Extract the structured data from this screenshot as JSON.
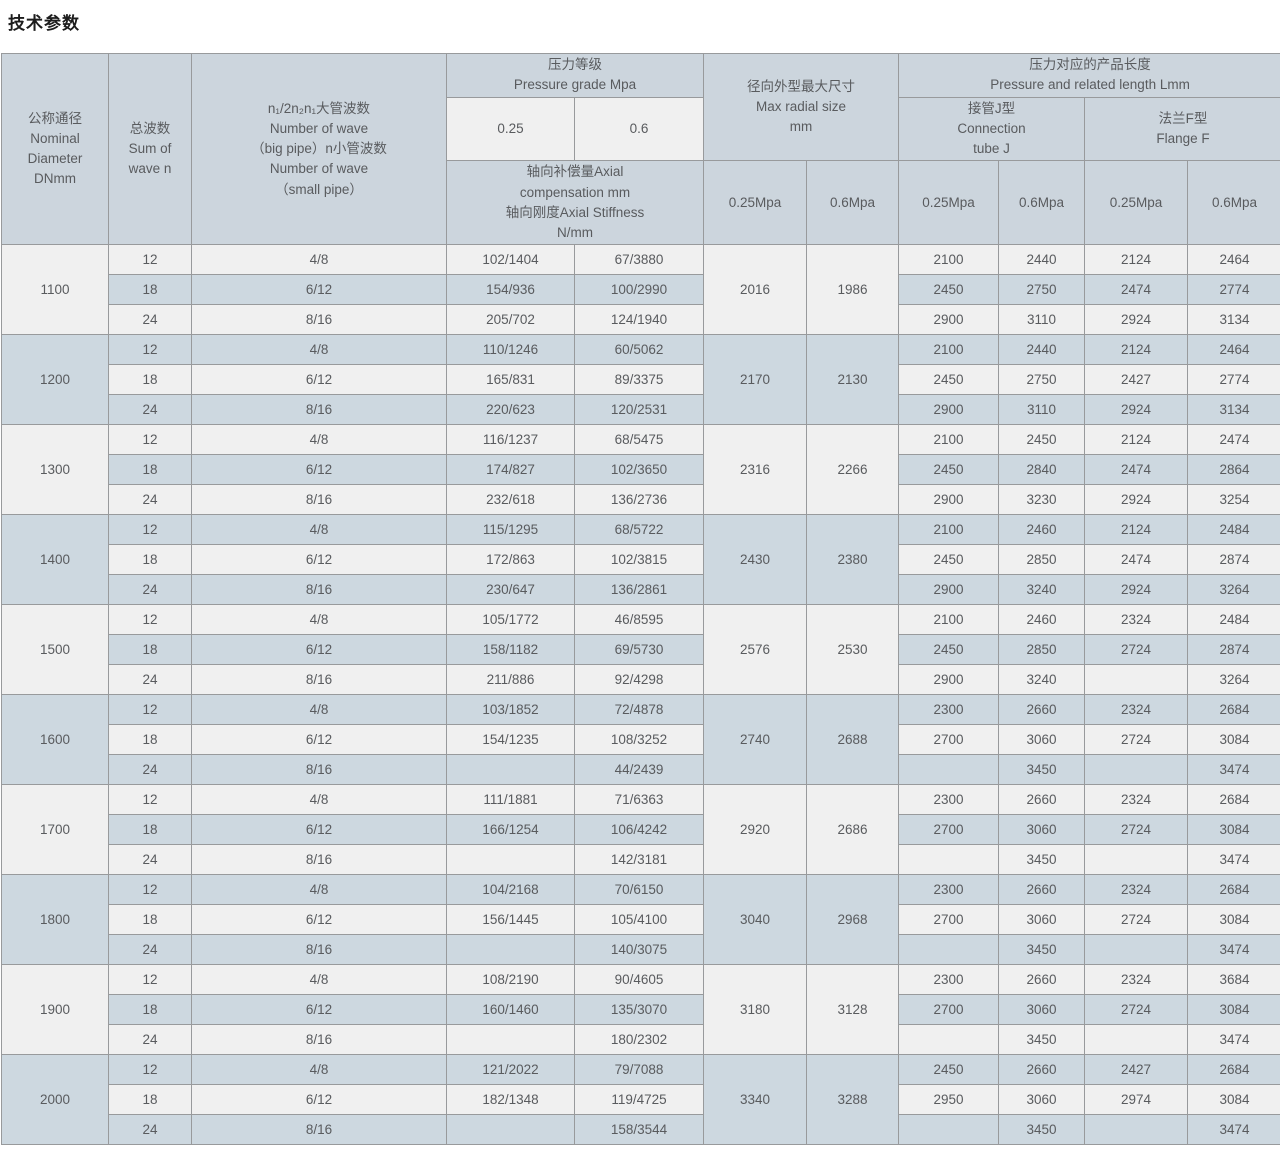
{
  "page_title": "技术参数",
  "colors": {
    "header_bg": "#ccd5dd",
    "row_light_bg": "#f0f0f0",
    "row_blue_bg": "#cdd8e0",
    "border": "#989a9c",
    "text": "#595b5e",
    "title_text": "#1c1c1c"
  },
  "table": {
    "header": {
      "nominal_diameter": "公称通径\nNominal\nDiameter\nDNmm",
      "sum_of_wave": "总波数\nSum of\nwave n",
      "wave_numbers": "n₁/2n₂n₁大管波数\nNumber of wave\n（big pipe）n小管波数\nNumber of wave\n（small pipe）",
      "pressure_grade": "压力等级\nPressure grade Mpa",
      "pressure_025": "0.25",
      "pressure_06": "0.6",
      "axial": "轴向补偿量Axial\ncompensation mm\n轴向刚度Axial Stiffness\nN/mm",
      "max_radial": "径向外型最大尺寸\nMax radial size\nmm",
      "radial_025": "0.25Mpa",
      "radial_06": "0.6Mpa",
      "length": "压力对应的产品长度\nPressure and related length Lmm",
      "connection_tube": "接管J型\nConnection\ntube J",
      "flange": "法兰F型\nFlange F",
      "j_025": "0.25Mpa",
      "j_06": "0.6Mpa",
      "f_025": "0.25Mpa",
      "f_06": "0.6Mpa"
    },
    "blocks": [
      {
        "dn": "1100",
        "radial_025": "2016",
        "radial_06": "1986",
        "rows": [
          {
            "waves": "12",
            "ratio": "4/8",
            "axial_025": "102/1404",
            "axial_06": "67/3880",
            "j_025": "2100",
            "j_06": "2440",
            "f_025": "2124",
            "f_06": "2464"
          },
          {
            "waves": "18",
            "ratio": "6/12",
            "axial_025": "154/936",
            "axial_06": "100/2990",
            "j_025": "2450",
            "j_06": "2750",
            "f_025": "2474",
            "f_06": "2774"
          },
          {
            "waves": "24",
            "ratio": "8/16",
            "axial_025": "205/702",
            "axial_06": "124/1940",
            "j_025": "2900",
            "j_06": "3110",
            "f_025": "2924",
            "f_06": "3134"
          }
        ]
      },
      {
        "dn": "1200",
        "radial_025": "2170",
        "radial_06": "2130",
        "rows": [
          {
            "waves": "12",
            "ratio": "4/8",
            "axial_025": "110/1246",
            "axial_06": "60/5062",
            "j_025": "2100",
            "j_06": "2440",
            "f_025": "2124",
            "f_06": "2464"
          },
          {
            "waves": "18",
            "ratio": "6/12",
            "axial_025": "165/831",
            "axial_06": "89/3375",
            "j_025": "2450",
            "j_06": "2750",
            "f_025": "2427",
            "f_06": "2774"
          },
          {
            "waves": "24",
            "ratio": "8/16",
            "axial_025": "220/623",
            "axial_06": "120/2531",
            "j_025": "2900",
            "j_06": "3110",
            "f_025": "2924",
            "f_06": "3134"
          }
        ]
      },
      {
        "dn": "1300",
        "radial_025": "2316",
        "radial_06": "2266",
        "rows": [
          {
            "waves": "12",
            "ratio": "4/8",
            "axial_025": "116/1237",
            "axial_06": "68/5475",
            "j_025": "2100",
            "j_06": "2450",
            "f_025": "2124",
            "f_06": "2474"
          },
          {
            "waves": "18",
            "ratio": "6/12",
            "axial_025": "174/827",
            "axial_06": "102/3650",
            "j_025": "2450",
            "j_06": "2840",
            "f_025": "2474",
            "f_06": "2864"
          },
          {
            "waves": "24",
            "ratio": "8/16",
            "axial_025": "232/618",
            "axial_06": "136/2736",
            "j_025": "2900",
            "j_06": "3230",
            "f_025": "2924",
            "f_06": "3254"
          }
        ]
      },
      {
        "dn": "1400",
        "radial_025": "2430",
        "radial_06": "2380",
        "rows": [
          {
            "waves": "12",
            "ratio": "4/8",
            "axial_025": "115/1295",
            "axial_06": "68/5722",
            "j_025": "2100",
            "j_06": "2460",
            "f_025": "2124",
            "f_06": "2484"
          },
          {
            "waves": "18",
            "ratio": "6/12",
            "axial_025": "172/863",
            "axial_06": "102/3815",
            "j_025": "2450",
            "j_06": "2850",
            "f_025": "2474",
            "f_06": "2874"
          },
          {
            "waves": "24",
            "ratio": "8/16",
            "axial_025": "230/647",
            "axial_06": "136/2861",
            "j_025": "2900",
            "j_06": "3240",
            "f_025": "2924",
            "f_06": "3264"
          }
        ]
      },
      {
        "dn": "1500",
        "radial_025": "2576",
        "radial_06": "2530",
        "rows": [
          {
            "waves": "12",
            "ratio": "4/8",
            "axial_025": "105/1772",
            "axial_06": "46/8595",
            "j_025": "2100",
            "j_06": "2460",
            "f_025": "2324",
            "f_06": "2484"
          },
          {
            "waves": "18",
            "ratio": "6/12",
            "axial_025": "158/1182",
            "axial_06": "69/5730",
            "j_025": "2450",
            "j_06": "2850",
            "f_025": "2724",
            "f_06": "2874"
          },
          {
            "waves": "24",
            "ratio": "8/16",
            "axial_025": "211/886",
            "axial_06": "92/4298",
            "j_025": "2900",
            "j_06": "3240",
            "f_025": "",
            "f_06": "3264"
          }
        ]
      },
      {
        "dn": "1600",
        "radial_025": "2740",
        "radial_06": "2688",
        "rows": [
          {
            "waves": "12",
            "ratio": "4/8",
            "axial_025": "103/1852",
            "axial_06": "72/4878",
            "j_025": "2300",
            "j_06": "2660",
            "f_025": "2324",
            "f_06": "2684"
          },
          {
            "waves": "18",
            "ratio": "6/12",
            "axial_025": "154/1235",
            "axial_06": "108/3252",
            "j_025": "2700",
            "j_06": "3060",
            "f_025": "2724",
            "f_06": "3084"
          },
          {
            "waves": "24",
            "ratio": "8/16",
            "axial_025": "",
            "axial_06": "44/2439",
            "j_025": "",
            "j_06": "3450",
            "f_025": "",
            "f_06": "3474"
          }
        ]
      },
      {
        "dn": "1700",
        "radial_025": "2920",
        "radial_06": "2686",
        "rows": [
          {
            "waves": "12",
            "ratio": "4/8",
            "axial_025": "111/1881",
            "axial_06": "71/6363",
            "j_025": "2300",
            "j_06": "2660",
            "f_025": "2324",
            "f_06": "2684"
          },
          {
            "waves": "18",
            "ratio": "6/12",
            "axial_025": "166/1254",
            "axial_06": "106/4242",
            "j_025": "2700",
            "j_06": "3060",
            "f_025": "2724",
            "f_06": "3084"
          },
          {
            "waves": "24",
            "ratio": "8/16",
            "axial_025": "",
            "axial_06": "142/3181",
            "j_025": "",
            "j_06": "3450",
            "f_025": "",
            "f_06": "3474"
          }
        ]
      },
      {
        "dn": "1800",
        "radial_025": "3040",
        "radial_06": "2968",
        "rows": [
          {
            "waves": "12",
            "ratio": "4/8",
            "axial_025": "104/2168",
            "axial_06": "70/6150",
            "j_025": "2300",
            "j_06": "2660",
            "f_025": "2324",
            "f_06": "2684"
          },
          {
            "waves": "18",
            "ratio": "6/12",
            "axial_025": "156/1445",
            "axial_06": "105/4100",
            "j_025": "2700",
            "j_06": "3060",
            "f_025": "2724",
            "f_06": "3084"
          },
          {
            "waves": "24",
            "ratio": "8/16",
            "axial_025": "",
            "axial_06": "140/3075",
            "j_025": "",
            "j_06": "3450",
            "f_025": "",
            "f_06": "3474"
          }
        ]
      },
      {
        "dn": "1900",
        "radial_025": "3180",
        "radial_06": "3128",
        "rows": [
          {
            "waves": "12",
            "ratio": "4/8",
            "axial_025": "108/2190",
            "axial_06": "90/4605",
            "j_025": "2300",
            "j_06": "2660",
            "f_025": "2324",
            "f_06": "3684"
          },
          {
            "waves": "18",
            "ratio": "6/12",
            "axial_025": "160/1460",
            "axial_06": "135/3070",
            "j_025": "2700",
            "j_06": "3060",
            "f_025": "2724",
            "f_06": "3084"
          },
          {
            "waves": "24",
            "ratio": "8/16",
            "axial_025": "",
            "axial_06": "180/2302",
            "j_025": "",
            "j_06": "3450",
            "f_025": "",
            "f_06": "3474"
          }
        ]
      },
      {
        "dn": "2000",
        "radial_025": "3340",
        "radial_06": "3288",
        "rows": [
          {
            "waves": "12",
            "ratio": "4/8",
            "axial_025": "121/2022",
            "axial_06": "79/7088",
            "j_025": "2450",
            "j_06": "2660",
            "f_025": "2427",
            "f_06": "2684"
          },
          {
            "waves": "18",
            "ratio": "6/12",
            "axial_025": "182/1348",
            "axial_06": "119/4725",
            "j_025": "2950",
            "j_06": "3060",
            "f_025": "2974",
            "f_06": "3084"
          },
          {
            "waves": "24",
            "ratio": "8/16",
            "axial_025": "",
            "axial_06": "158/3544",
            "j_025": "",
            "j_06": "3450",
            "f_025": "",
            "f_06": "3474"
          }
        ]
      }
    ]
  }
}
